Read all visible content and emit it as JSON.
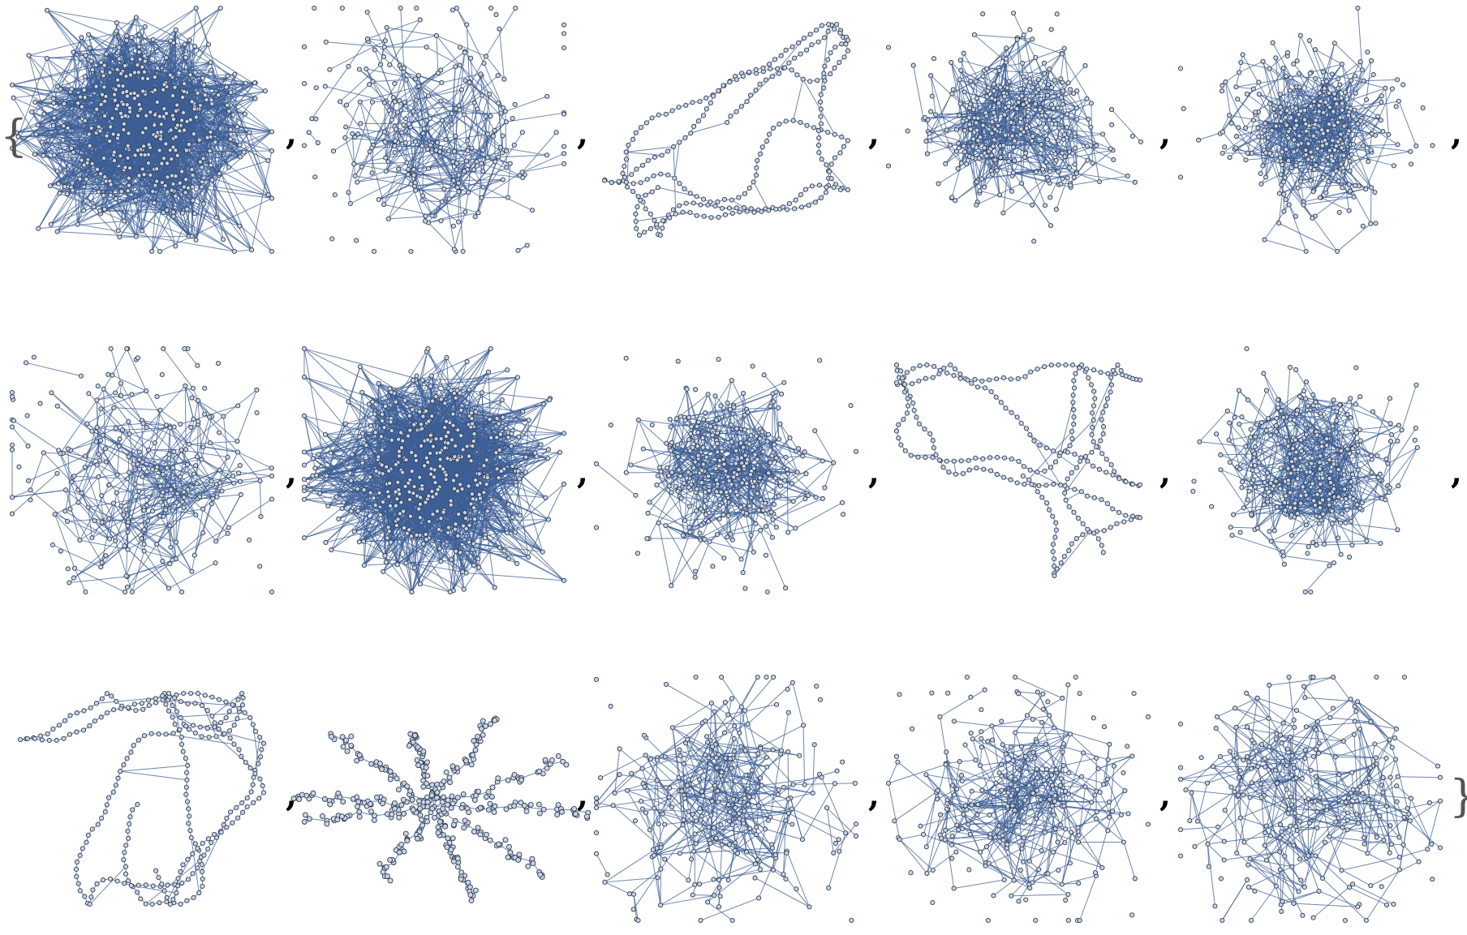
{
  "output": {
    "open_brace": "{",
    "close_brace": "}",
    "separator": ","
  },
  "style": {
    "edge_color": "#3d5f95",
    "node_fill": "#c9d4e6",
    "node_stroke": "#2f3b4f",
    "dense_core_color": "#2a4f86"
  },
  "graphs": [
    {
      "row": 1,
      "col": 1,
      "kind": "dense-cloud"
    },
    {
      "row": 1,
      "col": 2,
      "kind": "sparse-cloud"
    },
    {
      "row": 1,
      "col": 3,
      "kind": "loopy-ring"
    },
    {
      "row": 1,
      "col": 4,
      "kind": "medium-cloud"
    },
    {
      "row": 1,
      "col": 5,
      "kind": "medium-cloud"
    },
    {
      "row": 2,
      "col": 1,
      "kind": "sparse-cloud"
    },
    {
      "row": 2,
      "col": 2,
      "kind": "dense-cloud"
    },
    {
      "row": 2,
      "col": 3,
      "kind": "medium-cloud"
    },
    {
      "row": 2,
      "col": 4,
      "kind": "loopy-ring"
    },
    {
      "row": 2,
      "col": 5,
      "kind": "medium-cloud"
    },
    {
      "row": 3,
      "col": 1,
      "kind": "loopy-ring"
    },
    {
      "row": 3,
      "col": 2,
      "kind": "tree"
    },
    {
      "row": 3,
      "col": 3,
      "kind": "sparse-cloud"
    },
    {
      "row": 3,
      "col": 4,
      "kind": "sparse-cloud"
    },
    {
      "row": 3,
      "col": 5,
      "kind": "sparse-cloud"
    }
  ]
}
